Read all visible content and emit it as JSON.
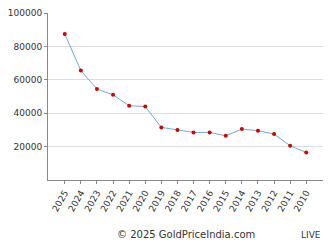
{
  "chart_data": {
    "type": "line",
    "categories": [
      "2025",
      "2024",
      "2023",
      "2022",
      "2021",
      "2020",
      "2019",
      "2018",
      "2017",
      "2016",
      "2015",
      "2014",
      "2013",
      "2012",
      "2011",
      "2010"
    ],
    "values": [
      87500,
      65500,
      54500,
      51000,
      44500,
      44000,
      31500,
      30000,
      28500,
      28500,
      26500,
      30500,
      29500,
      27500,
      20500,
      16500
    ],
    "color": "#6fa8dc",
    "marker": "circle",
    "ylim": [
      0,
      100000
    ],
    "yticks": [
      20000,
      40000,
      60000,
      80000,
      100000
    ],
    "grid": true,
    "annotations": [
      "© 2025 GoldPriceIndia.com",
      "LIVE"
    ]
  }
}
